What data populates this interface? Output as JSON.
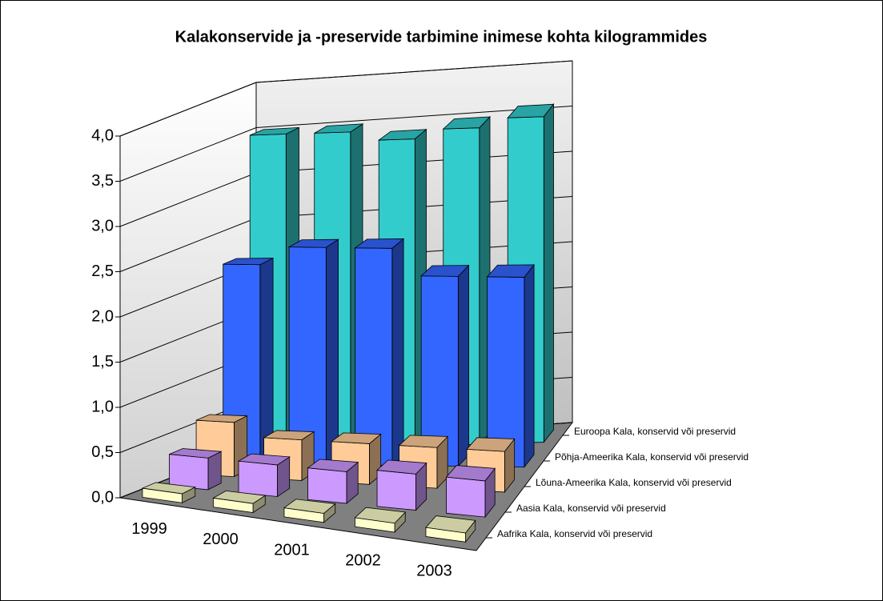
{
  "chart_data": {
    "type": "bar3d",
    "title": "Kalakonservide ja -preservide tarbimine inimese kohta kilogrammides",
    "categories": [
      "1999",
      "2000",
      "2001",
      "2002",
      "2003"
    ],
    "series": [
      {
        "name": "Aafrika Kala, konservid või preservid",
        "color": "#ffffcc",
        "values": [
          0.1,
          0.1,
          0.1,
          0.1,
          0.1
        ]
      },
      {
        "name": "Aasia Kala, konservid või preservid",
        "color": "#cc99ff",
        "values": [
          0.35,
          0.35,
          0.35,
          0.4,
          0.4
        ]
      },
      {
        "name": "Lõuna-Ameerika Kala, konservid või preservid",
        "color": "#ffcc99",
        "values": [
          0.6,
          0.45,
          0.45,
          0.45,
          0.45
        ]
      },
      {
        "name": "Põhja-Ameerika Kala, konservid või preservid",
        "color": "#3366ff",
        "values": [
          2.2,
          2.4,
          2.4,
          2.1,
          2.1
        ]
      },
      {
        "name": "Euroopa Kala, konservid või preservid",
        "color": "#33cccc",
        "values": [
          3.5,
          3.5,
          3.4,
          3.5,
          3.6
        ]
      }
    ],
    "ylim": [
      0,
      4
    ],
    "yticks": [
      {
        "value": 0,
        "label": "0,0"
      },
      {
        "value": 0.5,
        "label": "0,5"
      },
      {
        "value": 1,
        "label": "1,0"
      },
      {
        "value": 1.5,
        "label": "1,5"
      },
      {
        "value": 2,
        "label": "2,0"
      },
      {
        "value": 2.5,
        "label": "2,5"
      },
      {
        "value": 3,
        "label": "3,0"
      },
      {
        "value": 3.5,
        "label": "3,5"
      },
      {
        "value": 4,
        "label": "4,0"
      }
    ],
    "grid": true
  }
}
